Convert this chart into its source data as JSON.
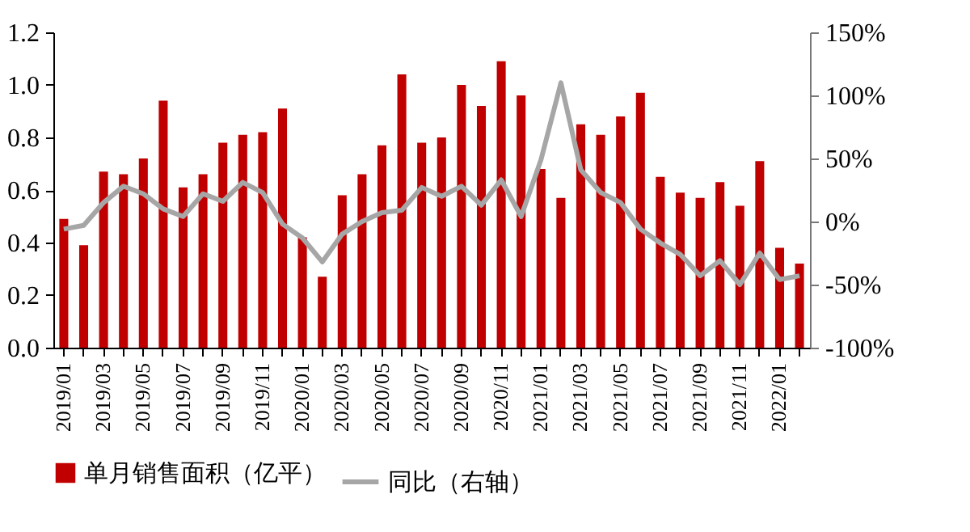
{
  "chart_data": {
    "type": "bar",
    "categories": [
      "2019/01",
      null,
      "2019/03",
      null,
      "2019/05",
      null,
      "2019/07",
      null,
      "2019/09",
      null,
      "2019/11",
      null,
      "2020/01",
      null,
      "2020/03",
      null,
      "2020/05",
      null,
      "2020/07",
      null,
      "2020/09",
      null,
      "2020/11",
      null,
      "2021/01",
      null,
      "2021/03",
      null,
      "2021/05",
      null,
      "2021/07",
      null,
      "2021/09",
      null,
      "2021/11",
      null,
      "2022/01",
      null
    ],
    "series": [
      {
        "name": "单月销售面积（亿平）",
        "color": "#c00000",
        "values": [
          0.49,
          0.39,
          0.67,
          0.66,
          0.72,
          0.94,
          0.61,
          0.66,
          0.78,
          0.81,
          0.82,
          0.91,
          0.42,
          0.27,
          0.58,
          0.66,
          0.77,
          1.04,
          0.78,
          0.8,
          1.0,
          0.92,
          1.09,
          0.96,
          0.68,
          0.57,
          0.85,
          0.81,
          0.88,
          0.97,
          0.65,
          0.59,
          0.57,
          0.63,
          0.54,
          0.71,
          0.38,
          0.32
        ]
      },
      {
        "name": "同比（右轴）",
        "type": "line",
        "axis": "y2",
        "color": "#a6a6a6",
        "values": [
          -6,
          -3,
          15,
          28,
          22,
          10,
          4,
          22,
          16,
          31,
          23,
          -2,
          -13,
          -32,
          -10,
          0,
          7,
          9,
          27,
          20,
          28,
          13,
          33,
          4,
          49,
          110,
          41,
          23,
          15,
          -6,
          -17,
          -26,
          -43,
          -31,
          -50,
          -25,
          -46,
          -43
        ]
      }
    ],
    "ylim": [
      0,
      1.2
    ],
    "yticks": [
      {
        "value": 0,
        "label": "0.0"
      },
      {
        "value": 0.2,
        "label": "0.2"
      },
      {
        "value": 0.4,
        "label": "0.4"
      },
      {
        "value": 0.6,
        "label": "0.6"
      },
      {
        "value": 0.8,
        "label": "0.8"
      },
      {
        "value": 1.0,
        "label": "1.0"
      },
      {
        "value": 1.2,
        "label": "1.2"
      }
    ],
    "y2lim": [
      -100,
      150
    ],
    "y2ticks": [
      {
        "value": -100,
        "label": "-100%"
      },
      {
        "value": -50,
        "label": "-50%"
      },
      {
        "value": 0,
        "label": "0%"
      },
      {
        "value": 50,
        "label": "50%"
      },
      {
        "value": 100,
        "label": "100%"
      },
      {
        "value": 150,
        "label": "150%"
      }
    ],
    "legend": "bottom",
    "grid": false,
    "marker": "none",
    "line_style": "solid"
  }
}
